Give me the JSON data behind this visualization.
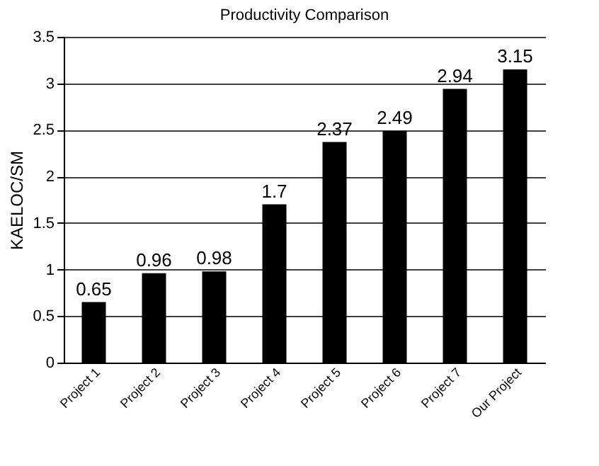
{
  "chart_data": {
    "type": "bar",
    "title": "Productivity Comparison",
    "ylabel": "KAELOC/SM",
    "categories": [
      "Project 1",
      "Project 2",
      "Project 3",
      "Project 4",
      "Project 5",
      "Project 6",
      "Project 7",
      "Our Project"
    ],
    "values": [
      0.65,
      0.96,
      0.98,
      1.7,
      2.37,
      2.49,
      2.94,
      3.15
    ],
    "color": "#000000",
    "ylim": [
      0,
      3.5
    ],
    "yticks": [
      0,
      0.5,
      1,
      1.5,
      2,
      2.5,
      3,
      3.5
    ],
    "grid": "y",
    "data_labels": true
  }
}
